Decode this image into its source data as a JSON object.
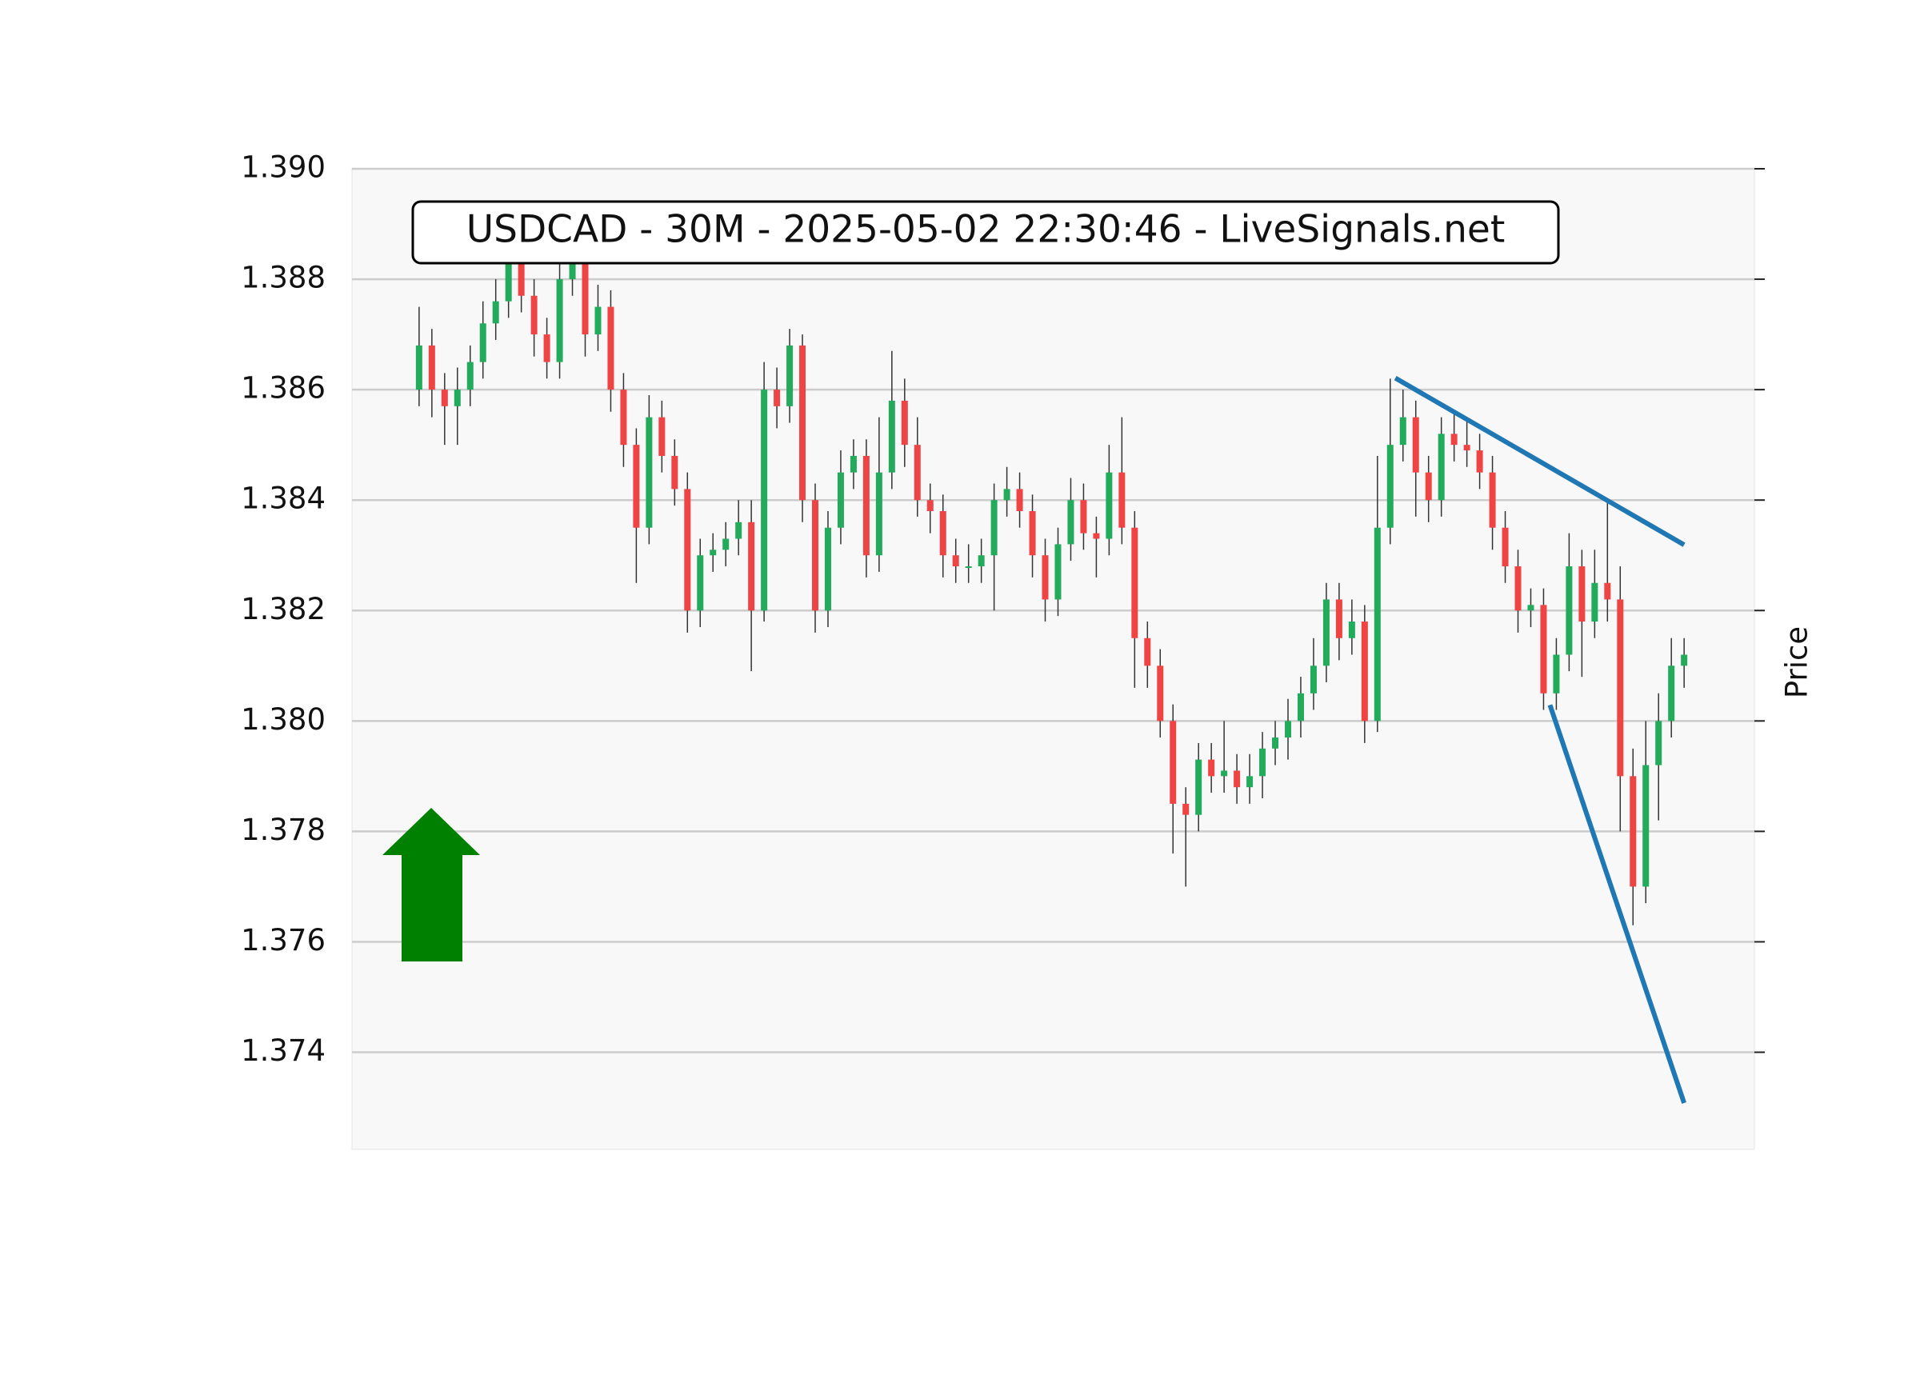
{
  "chart_data": {
    "type": "candlestick",
    "title": "USDCAD - 30M - 2025-05-02 22:30:46 - LiveSignals.net",
    "y_label": "Price",
    "up_color": "#22ab5a",
    "down_color": "#ef4444",
    "wick_color": "#333333",
    "open": [
      1.386,
      1.3868,
      1.386,
      1.3857,
      1.386,
      1.3865,
      1.3872,
      1.3876,
      1.3885,
      1.3877,
      1.387,
      1.3865,
      1.388,
      1.3885,
      1.387,
      1.3875,
      1.386,
      1.385,
      1.3835,
      1.3855,
      1.3848,
      1.3842,
      1.382,
      1.383,
      1.3831,
      1.3833,
      1.3836,
      1.382,
      1.386,
      1.3857,
      1.3868,
      1.384,
      1.382,
      1.3835,
      1.3845,
      1.3848,
      1.383,
      1.3845,
      1.3858,
      1.385,
      1.384,
      1.3838,
      1.383,
      1.3828,
      1.3828,
      1.383,
      1.384,
      1.3842,
      1.3838,
      1.383,
      1.3822,
      1.3832,
      1.384,
      1.3834,
      1.3833,
      1.3845,
      1.3835,
      1.3815,
      1.381,
      1.38,
      1.3785,
      1.3783,
      1.3793,
      1.379,
      1.3791,
      1.3788,
      1.379,
      1.3795,
      1.3797,
      1.38,
      1.3805,
      1.381,
      1.3822,
      1.3815,
      1.3818,
      1.38,
      1.3835,
      1.385,
      1.3855,
      1.3845,
      1.384,
      1.3852,
      1.385,
      1.3849,
      1.3845,
      1.3835,
      1.3828,
      1.382,
      1.3821,
      1.3805,
      1.3812,
      1.3828,
      1.3818,
      1.3825,
      1.3822,
      1.379,
      1.377,
      1.3792,
      1.38,
      1.381
    ],
    "high": [
      1.3875,
      1.3871,
      1.3863,
      1.3864,
      1.3868,
      1.3876,
      1.388,
      1.389,
      1.3888,
      1.388,
      1.3873,
      1.3886,
      1.389,
      1.3888,
      1.3879,
      1.3878,
      1.3863,
      1.3853,
      1.3859,
      1.3858,
      1.3851,
      1.3845,
      1.3833,
      1.3834,
      1.3836,
      1.384,
      1.384,
      1.3865,
      1.3864,
      1.3871,
      1.387,
      1.3843,
      1.3838,
      1.3849,
      1.3851,
      1.3851,
      1.3855,
      1.3867,
      1.3862,
      1.3855,
      1.3843,
      1.3841,
      1.3833,
      1.3832,
      1.3833,
      1.3843,
      1.3846,
      1.3845,
      1.3841,
      1.3833,
      1.3835,
      1.3844,
      1.3843,
      1.3837,
      1.385,
      1.3855,
      1.3838,
      1.3818,
      1.3813,
      1.3803,
      1.3788,
      1.3796,
      1.3796,
      1.38,
      1.3794,
      1.3794,
      1.3798,
      1.38,
      1.3804,
      1.3808,
      1.3815,
      1.3825,
      1.3825,
      1.3822,
      1.3821,
      1.3848,
      1.3862,
      1.386,
      1.3858,
      1.3848,
      1.3855,
      1.3856,
      1.3855,
      1.3852,
      1.3848,
      1.3838,
      1.3831,
      1.3824,
      1.3824,
      1.3815,
      1.3834,
      1.3831,
      1.3831,
      1.384,
      1.3828,
      1.3795,
      1.38,
      1.3805,
      1.3815,
      1.3815
    ],
    "low": [
      1.3857,
      1.3855,
      1.385,
      1.385,
      1.3857,
      1.3862,
      1.3869,
      1.3873,
      1.3874,
      1.3866,
      1.3862,
      1.3862,
      1.3877,
      1.3866,
      1.3867,
      1.3856,
      1.3846,
      1.3825,
      1.3832,
      1.3845,
      1.3839,
      1.3816,
      1.3817,
      1.3827,
      1.3828,
      1.383,
      1.3809,
      1.3818,
      1.3853,
      1.3854,
      1.3836,
      1.3816,
      1.3817,
      1.3832,
      1.3842,
      1.3826,
      1.3827,
      1.3842,
      1.3846,
      1.3837,
      1.3834,
      1.3826,
      1.3825,
      1.3825,
      1.3825,
      1.382,
      1.3837,
      1.3835,
      1.3826,
      1.3818,
      1.3819,
      1.3829,
      1.3831,
      1.3826,
      1.383,
      1.3832,
      1.3806,
      1.3806,
      1.3797,
      1.3776,
      1.377,
      1.378,
      1.3787,
      1.3787,
      1.3785,
      1.3785,
      1.3786,
      1.3792,
      1.3793,
      1.3797,
      1.3802,
      1.3807,
      1.3811,
      1.3812,
      1.3796,
      1.3798,
      1.3832,
      1.3847,
      1.3837,
      1.3836,
      1.3837,
      1.3847,
      1.3846,
      1.3842,
      1.3831,
      1.3825,
      1.3816,
      1.3817,
      1.3802,
      1.3802,
      1.3809,
      1.3808,
      1.3815,
      1.3818,
      1.378,
      1.3763,
      1.3767,
      1.3782,
      1.3797,
      1.3806
    ],
    "close": [
      1.3868,
      1.386,
      1.3857,
      1.386,
      1.3865,
      1.3872,
      1.3876,
      1.3885,
      1.3877,
      1.387,
      1.3865,
      1.388,
      1.3885,
      1.387,
      1.3875,
      1.386,
      1.385,
      1.3835,
      1.3855,
      1.3848,
      1.3842,
      1.382,
      1.383,
      1.3831,
      1.3833,
      1.3836,
      1.382,
      1.386,
      1.3857,
      1.3868,
      1.384,
      1.382,
      1.3835,
      1.3845,
      1.3848,
      1.383,
      1.3845,
      1.3858,
      1.385,
      1.384,
      1.3838,
      1.383,
      1.3828,
      1.3828,
      1.383,
      1.384,
      1.3842,
      1.3838,
      1.383,
      1.3822,
      1.3832,
      1.384,
      1.3834,
      1.3833,
      1.3845,
      1.3835,
      1.3815,
      1.381,
      1.38,
      1.3785,
      1.3783,
      1.3793,
      1.379,
      1.3791,
      1.3788,
      1.379,
      1.3795,
      1.3797,
      1.38,
      1.3805,
      1.381,
      1.3822,
      1.3815,
      1.3818,
      1.38,
      1.3835,
      1.385,
      1.3855,
      1.3845,
      1.384,
      1.3852,
      1.385,
      1.3849,
      1.3845,
      1.3835,
      1.3828,
      1.382,
      1.3821,
      1.3805,
      1.3812,
      1.3828,
      1.3818,
      1.3825,
      1.3822,
      1.379,
      1.377,
      1.3792,
      1.38,
      1.381,
      1.3812
    ],
    "trendline_color": "#1f77b4",
    "trendlines": [
      {
        "x": [
          76.4,
          99
        ],
        "y": [
          1.38621,
          1.38319
        ]
      },
      {
        "x": [
          88.5,
          99
        ],
        "y": [
          1.38029,
          1.37308
        ]
      }
    ],
    "xlim": [
      -5.25,
      104.5
    ],
    "ylim": [
      1.37224,
      1.39
    ],
    "yticks": [
      {
        "value": 1.374,
        "label": "1.374"
      },
      {
        "value": 1.376,
        "label": "1.376"
      },
      {
        "value": 1.378,
        "label": "1.378"
      },
      {
        "value": 1.38,
        "label": "1.380"
      },
      1.382,
      1.384,
      1.386,
      1.388,
      {
        "value": 1.39,
        "label": "1.390"
      }
    ],
    "grid": true
  }
}
